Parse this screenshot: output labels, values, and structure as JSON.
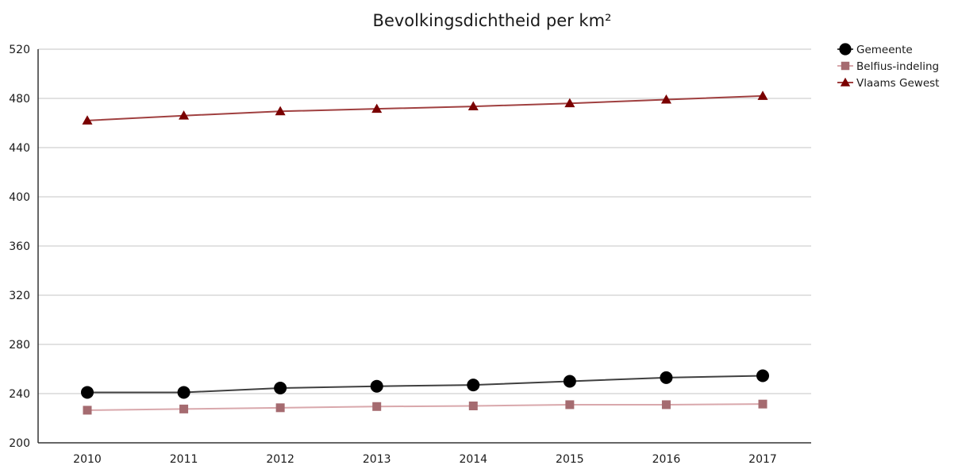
{
  "chart_data": {
    "type": "line",
    "title": "Bevolkingsdichtheid per km²",
    "xlabel": "",
    "ylabel": "",
    "categories": [
      "2010",
      "2011",
      "2012",
      "2013",
      "2014",
      "2015",
      "2016",
      "2017"
    ],
    "ylim": [
      200,
      520
    ],
    "yticks": [
      200,
      240,
      280,
      320,
      360,
      400,
      440,
      480,
      520
    ],
    "grid": "horizontal",
    "legend_position": "top-right",
    "series": [
      {
        "name": "Gemeente",
        "marker": "circle",
        "color": "#000000",
        "line_color": "#404040",
        "values": [
          241,
          241,
          244.5,
          246,
          247,
          250,
          253,
          254.5
        ]
      },
      {
        "name": "Belfius-indeling",
        "marker": "square",
        "color": "#a56b70",
        "line_color": "#d9a8ac",
        "values": [
          226.5,
          227.5,
          228.5,
          229.5,
          230,
          231,
          231,
          231.5
        ]
      },
      {
        "name": "Vlaams Gewest",
        "marker": "triangle",
        "color": "#7a0000",
        "line_color": "#a04040",
        "values": [
          462,
          466,
          469.5,
          471.5,
          473.5,
          476,
          479,
          482
        ]
      }
    ]
  }
}
